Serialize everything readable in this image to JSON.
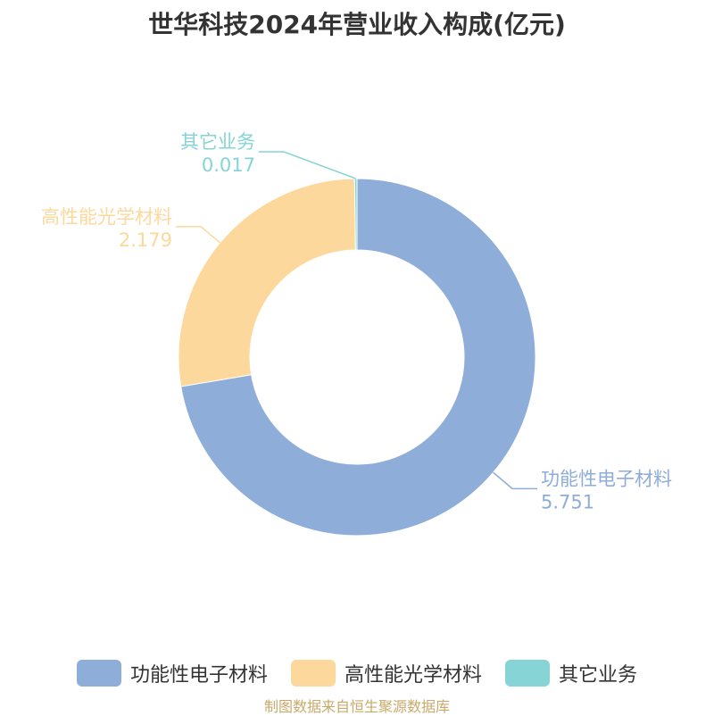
{
  "chart_data": {
    "type": "pie",
    "title": "世华科技2024年营业收入构成(亿元)",
    "donut": true,
    "series": [
      {
        "name": "功能性电子材料",
        "value": 5.751,
        "color": "#8eadd9"
      },
      {
        "name": "高性能光学材料",
        "value": 2.179,
        "color": "#fdd89c"
      },
      {
        "name": "其它业务",
        "value": 0.017,
        "color": "#86d4d6"
      }
    ],
    "legend_position": "bottom"
  },
  "source_note": "制图数据来自恒生聚源数据库"
}
